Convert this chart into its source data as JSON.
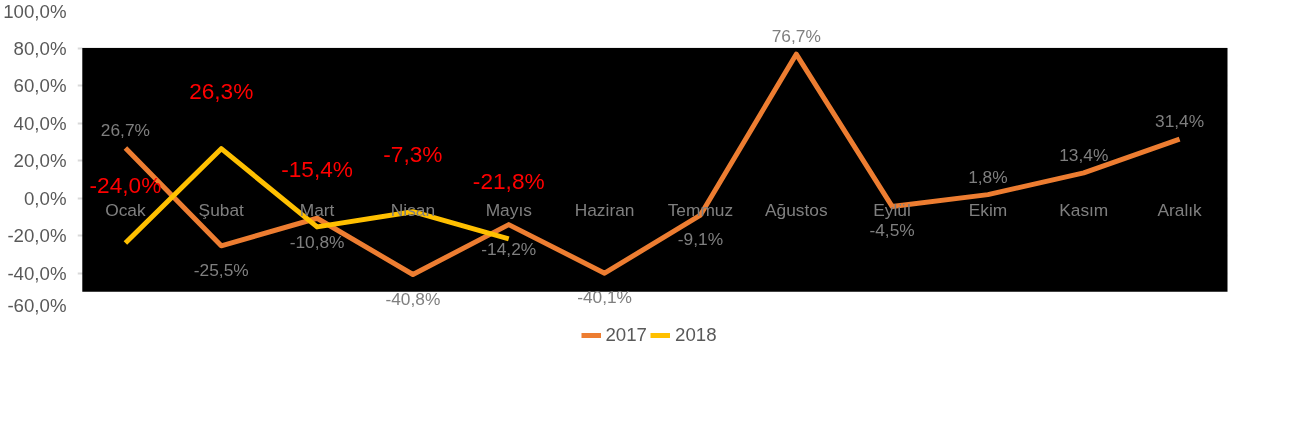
{
  "chart_data": {
    "type": "line",
    "categories": [
      "Ocak",
      "Şubat",
      "Mart",
      "Nisan",
      "Mayıs",
      "Haziran",
      "Temmuz",
      "Ağustos",
      "Eylül",
      "Ekim",
      "Kasım",
      "Aralık"
    ],
    "series": [
      {
        "name": "2017",
        "color": "#ed7d31",
        "values": [
          26.7,
          -25.5,
          -10.8,
          -40.8,
          -14.2,
          -40.1,
          -9.1,
          76.7,
          -4.5,
          1.8,
          13.4,
          31.4
        ],
        "value_labels": [
          "26,7%",
          "-25,5%",
          "-10,8%",
          "-40,8%",
          "-14,2%",
          "-40,1%",
          "-9,1%",
          "76,7%",
          "-4,5%",
          "1,8%",
          "13,4%",
          "31,4%"
        ]
      },
      {
        "name": "2018",
        "color": "#ffc000",
        "values": [
          -24.0,
          26.3,
          -15.4,
          -7.3,
          -21.8,
          null,
          null,
          null,
          null,
          null,
          null,
          null
        ],
        "value_labels": [
          "-24,0%",
          "26,3%",
          "-15,4%",
          "-7,3%",
          "-21,8%",
          null,
          null,
          null,
          null,
          null,
          null,
          null
        ]
      }
    ],
    "ylim": [
      -60,
      100
    ],
    "yticks": [
      {
        "value": -60,
        "label": "-60,0%"
      },
      {
        "value": -40,
        "label": "-40,0%"
      },
      {
        "value": -20,
        "label": "-20,0%"
      },
      {
        "value": 0,
        "label": "0,0%"
      },
      {
        "value": 20,
        "label": "20,0%"
      },
      {
        "value": 40,
        "label": "40,0%"
      },
      {
        "value": 60,
        "label": "60,0%"
      },
      {
        "value": 80,
        "label": "80,0%"
      },
      {
        "value": 100,
        "label": "100,0%"
      }
    ],
    "bands": [
      {
        "axis": "y",
        "from": -50,
        "to": 80,
        "color": "#000000"
      }
    ],
    "grid": "y",
    "legend": "bottom",
    "marker": "none",
    "line_style": "solid"
  }
}
